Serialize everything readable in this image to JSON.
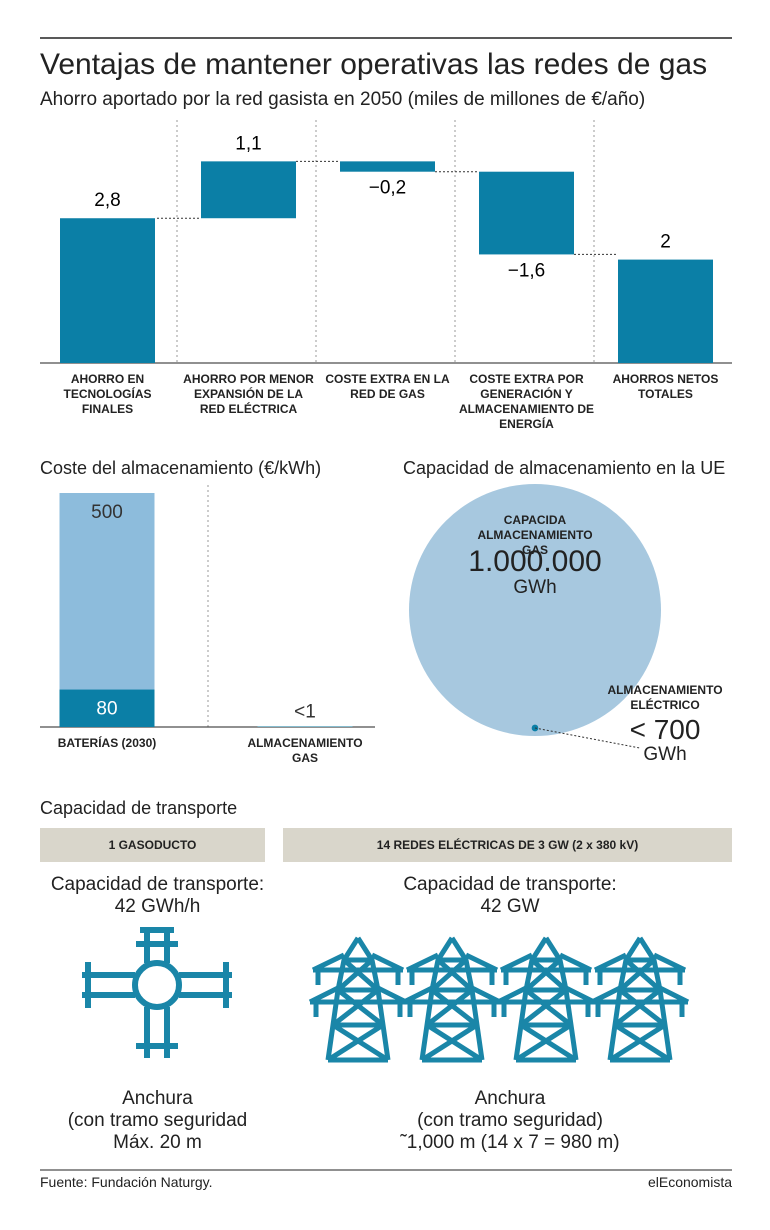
{
  "title": "Ventajas de mantener operativas las redes de gas",
  "chart_data": [
    {
      "type": "waterfall",
      "title": "Ahorro aportado por la red gasista en 2050 (miles de millones de €/año)",
      "categories": [
        "AHORRO EN TECNOLOGÍAS FINALES",
        "AHORRO POR MENOR EXPANSIÓN DE LA RED ELÉCTRICA",
        "COSTE EXTRA EN LA RED DE GAS",
        "COSTE EXTRA POR GENERACIÓN Y ALMACENAMIENTO DE ENERGÍA",
        "AHORROS NETOS TOTALES"
      ],
      "values": [
        2.8,
        1.1,
        -0.2,
        -1.6,
        2
      ],
      "value_labels": [
        "2,8",
        "1,1",
        "−0,2",
        "−1,6",
        "2"
      ],
      "color": "#0b7fa6",
      "ylim": [
        0,
        4.7
      ]
    },
    {
      "type": "bar",
      "title": "Coste del almacenamiento (€/kWh)",
      "categories": [
        "BATERÍAS (2030)",
        "ALMACENAMIENTO GAS"
      ],
      "series": [
        {
          "color": "#8dbcdc",
          "values": [
            500,
            null
          ],
          "value_labels": [
            "500",
            null
          ]
        },
        {
          "color": "#0b7fa6",
          "values": [
            80,
            1
          ],
          "value_labels": [
            "80",
            "<1"
          ]
        }
      ],
      "ylim": [
        0,
        500
      ]
    },
    {
      "type": "bubble",
      "title": "Capacidad de almacenamiento en la UE",
      "categories": [
        "CAPACIDA ALMACENAMIENTO GAS",
        "ALMACENAMIENTO ELÉCTRICO"
      ],
      "values": [
        1000000,
        700
      ],
      "value_labels": [
        "1.000.000",
        "< 700"
      ],
      "unit": "GWh",
      "colors": [
        "#a7c8df",
        "#0b7fa6"
      ]
    }
  ],
  "transport": {
    "title": "Capacidad de transporte",
    "columns": [
      {
        "header": "1 GASODUCTO",
        "capacity": [
          "Capacidad de transporte:",
          "42 GWh/h"
        ],
        "width": [
          "Anchura",
          "(con tramo seguridad",
          "Máx. 20 m"
        ]
      },
      {
        "header": "14 REDES ELÉCTRICAS DE 3 GW (2 x 380 kV)",
        "capacity": [
          "Capacidad de transporte:",
          "42 GW"
        ],
        "width": [
          "Anchura",
          "(con tramo seguridad)",
          "˜1,000 m (14 x 7 = 980 m)"
        ]
      }
    ]
  },
  "source": "Fuente: Fundación Naturgy.",
  "brand": "elEconomista"
}
